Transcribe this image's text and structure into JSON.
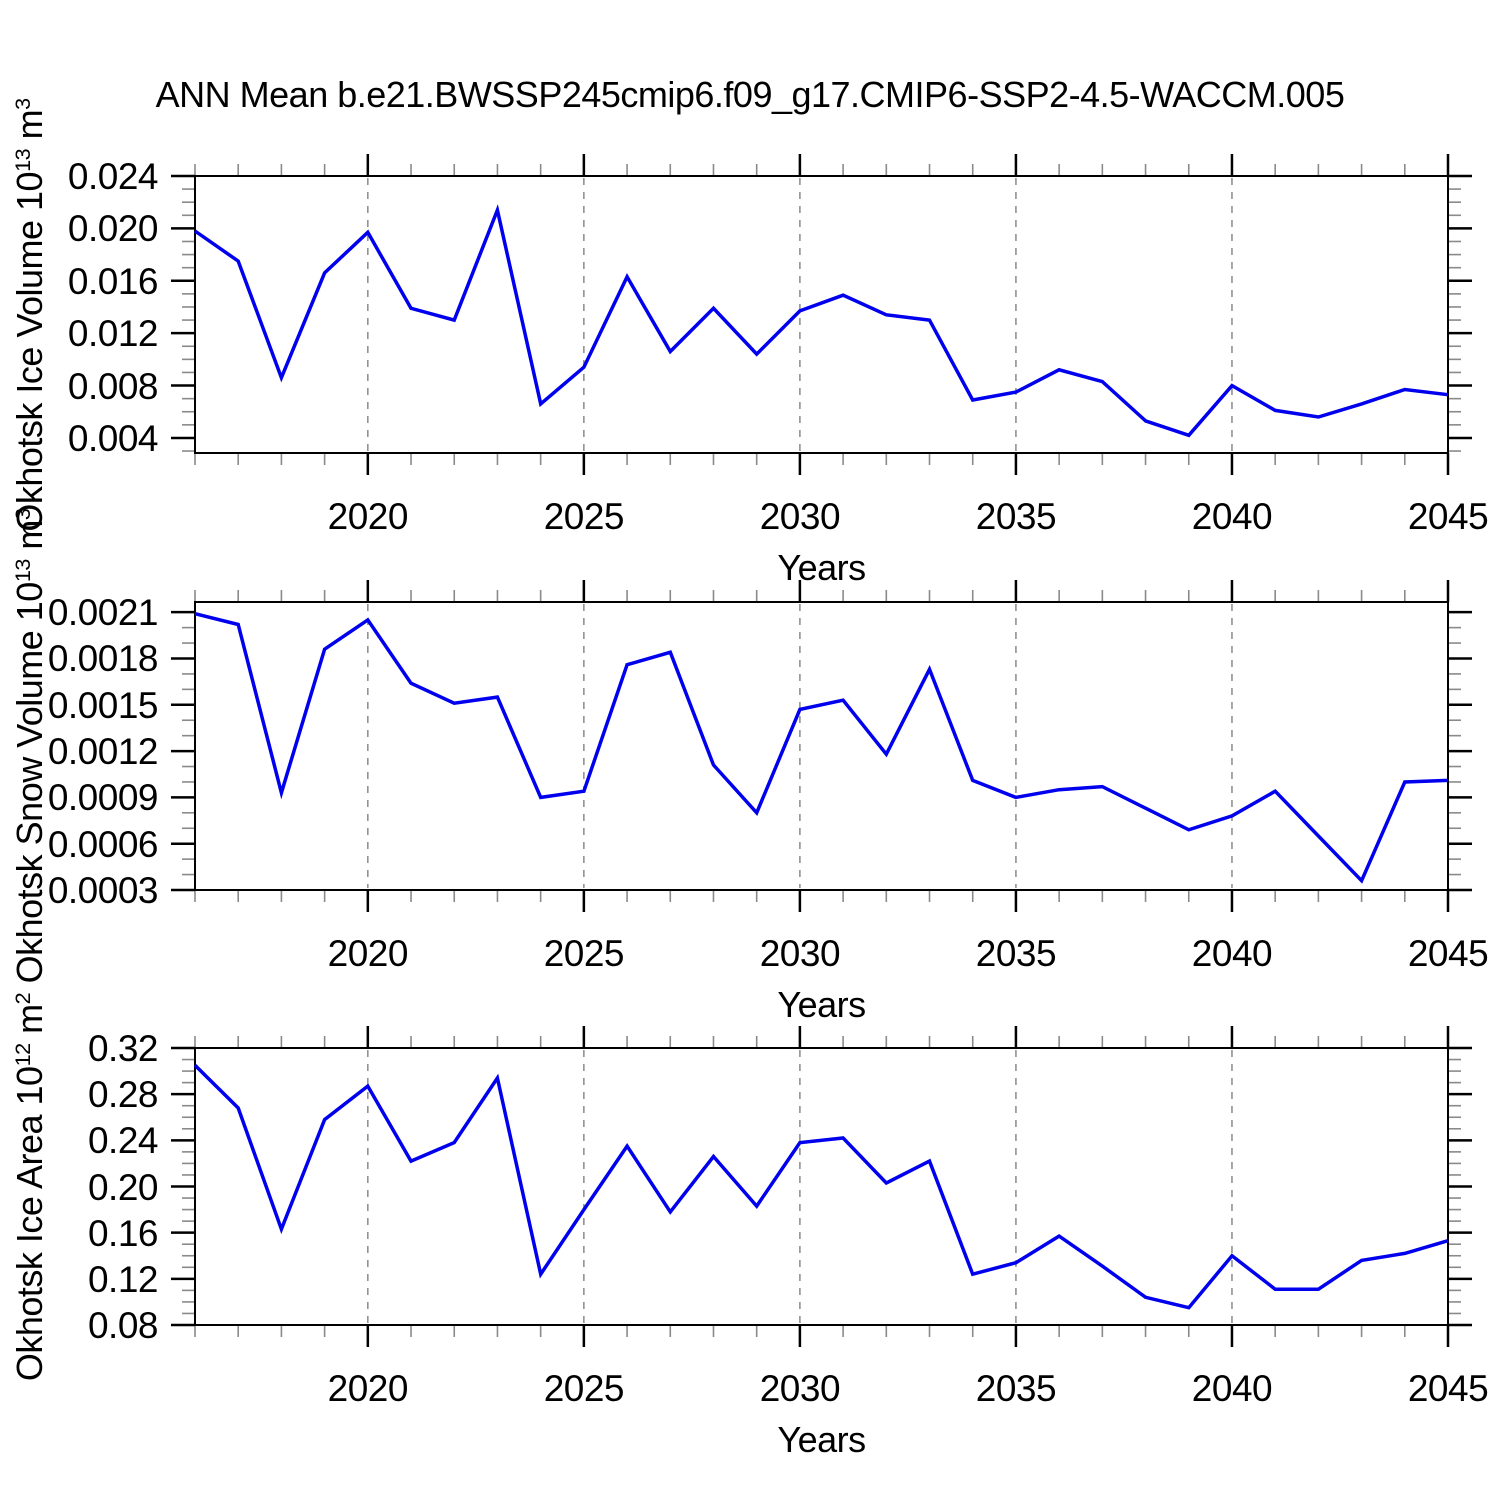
{
  "title": "ANN Mean b.e21.BWSSP245cmip6.f09_g17.CMIP6-SSP2-4.5-WACCM.005",
  "colors": {
    "line": "#0000ee",
    "grid": "#8a8a8a",
    "axis": "#000000",
    "minor_tick": "#8a8a8a"
  },
  "chart_data": [
    {
      "type": "line",
      "ylabel": {
        "base": "Okhotsk Ice Volume 10",
        "sup": "13",
        "base2": " m",
        "sup2": "3"
      },
      "xlabel": "Years",
      "x": [
        2016,
        2017,
        2018,
        2019,
        2020,
        2021,
        2022,
        2023,
        2024,
        2025,
        2026,
        2027,
        2028,
        2029,
        2030,
        2031,
        2032,
        2033,
        2034,
        2035,
        2036,
        2037,
        2038,
        2039,
        2040,
        2041,
        2042,
        2043,
        2044,
        2045
      ],
      "values": [
        0.0198,
        0.0175,
        0.0086,
        0.0166,
        0.0197,
        0.0139,
        0.013,
        0.0214,
        0.0066,
        0.0094,
        0.0163,
        0.0106,
        0.0139,
        0.0104,
        0.0137,
        0.0149,
        0.0134,
        0.013,
        0.0069,
        0.0075,
        0.0092,
        0.0083,
        0.0053,
        0.0042,
        0.008,
        0.0061,
        0.0056,
        0.0066,
        0.0077,
        0.0073
      ],
      "xlim": [
        2016,
        2045
      ],
      "ylim": [
        0.00285,
        0.024
      ],
      "x_major_ticks": [
        2020,
        2025,
        2030,
        2035,
        2040,
        2045
      ],
      "x_tick_labels": [
        "2020",
        "2025",
        "2030",
        "2035",
        "2040",
        "2045"
      ],
      "x_minor_step": 1,
      "gridlines_x": [
        2020,
        2025,
        2030,
        2035,
        2040
      ],
      "y_major_ticks": [
        0.004,
        0.008,
        0.012,
        0.016,
        0.02,
        0.024
      ],
      "y_tick_labels": [
        "0.004",
        "0.008",
        "0.012",
        "0.016",
        "0.020",
        "0.024"
      ],
      "y_minor_step": 0.001,
      "grid": true,
      "legend": "none"
    },
    {
      "type": "line",
      "ylabel": {
        "base": "Okhotsk Snow Volume 10",
        "sup": "13",
        "base2": " m",
        "sup2": "3"
      },
      "xlabel": "Years",
      "x": [
        2016,
        2017,
        2018,
        2019,
        2020,
        2021,
        2022,
        2023,
        2024,
        2025,
        2026,
        2027,
        2028,
        2029,
        2030,
        2031,
        2032,
        2033,
        2034,
        2035,
        2036,
        2037,
        2038,
        2039,
        2040,
        2041,
        2042,
        2043,
        2044,
        2045
      ],
      "values": [
        0.00209,
        0.00202,
        0.00093,
        0.00186,
        0.00205,
        0.00164,
        0.00151,
        0.00155,
        0.0009,
        0.00094,
        0.00176,
        0.00184,
        0.00111,
        0.0008,
        0.00147,
        0.00153,
        0.00118,
        0.00173,
        0.00101,
        0.0009,
        0.00095,
        0.00097,
        0.00083,
        0.00069,
        0.00078,
        0.00094,
        0.00065,
        0.00036,
        0.001,
        0.00101
      ],
      "xlim": [
        2016,
        2045
      ],
      "ylim": [
        0.0003,
        0.002166
      ],
      "x_major_ticks": [
        2020,
        2025,
        2030,
        2035,
        2040,
        2045
      ],
      "x_tick_labels": [
        "2020",
        "2025",
        "2030",
        "2035",
        "2040",
        "2045"
      ],
      "x_minor_step": 1,
      "gridlines_x": [
        2020,
        2025,
        2030,
        2035,
        2040
      ],
      "y_major_ticks": [
        0.0003,
        0.0006,
        0.0009,
        0.0012,
        0.0015,
        0.0018,
        0.0021
      ],
      "y_tick_labels": [
        "0.0003",
        "0.0006",
        "0.0009",
        "0.0012",
        "0.0015",
        "0.0018",
        "0.0021"
      ],
      "y_minor_step": 0.0001,
      "grid": true,
      "legend": "none"
    },
    {
      "type": "line",
      "ylabel": {
        "base": "Okhotsk Ice Area 10",
        "sup": "12",
        "base2": " m",
        "sup2": "2"
      },
      "xlabel": "Years",
      "x": [
        2016,
        2017,
        2018,
        2019,
        2020,
        2021,
        2022,
        2023,
        2024,
        2025,
        2026,
        2027,
        2028,
        2029,
        2030,
        2031,
        2032,
        2033,
        2034,
        2035,
        2036,
        2037,
        2038,
        2039,
        2040,
        2041,
        2042,
        2043,
        2044,
        2045
      ],
      "values": [
        0.305,
        0.268,
        0.163,
        0.258,
        0.287,
        0.222,
        0.238,
        0.294,
        0.124,
        0.18,
        0.235,
        0.178,
        0.226,
        0.183,
        0.238,
        0.242,
        0.203,
        0.222,
        0.124,
        0.134,
        0.157,
        0.131,
        0.104,
        0.095,
        0.14,
        0.111,
        0.111,
        0.136,
        0.142,
        0.153
      ],
      "xlim": [
        2016,
        2045
      ],
      "ylim": [
        0.08,
        0.32
      ],
      "x_major_ticks": [
        2020,
        2025,
        2030,
        2035,
        2040,
        2045
      ],
      "x_tick_labels": [
        "2020",
        "2025",
        "2030",
        "2035",
        "2040",
        "2045"
      ],
      "x_minor_step": 1,
      "gridlines_x": [
        2020,
        2025,
        2030,
        2035,
        2040
      ],
      "y_major_ticks": [
        0.08,
        0.12,
        0.16,
        0.2,
        0.24,
        0.28,
        0.32
      ],
      "y_tick_labels": [
        "0.08",
        "0.12",
        "0.16",
        "0.20",
        "0.24",
        "0.28",
        "0.32"
      ],
      "y_minor_step": 0.01,
      "grid": true,
      "legend": "none"
    }
  ]
}
